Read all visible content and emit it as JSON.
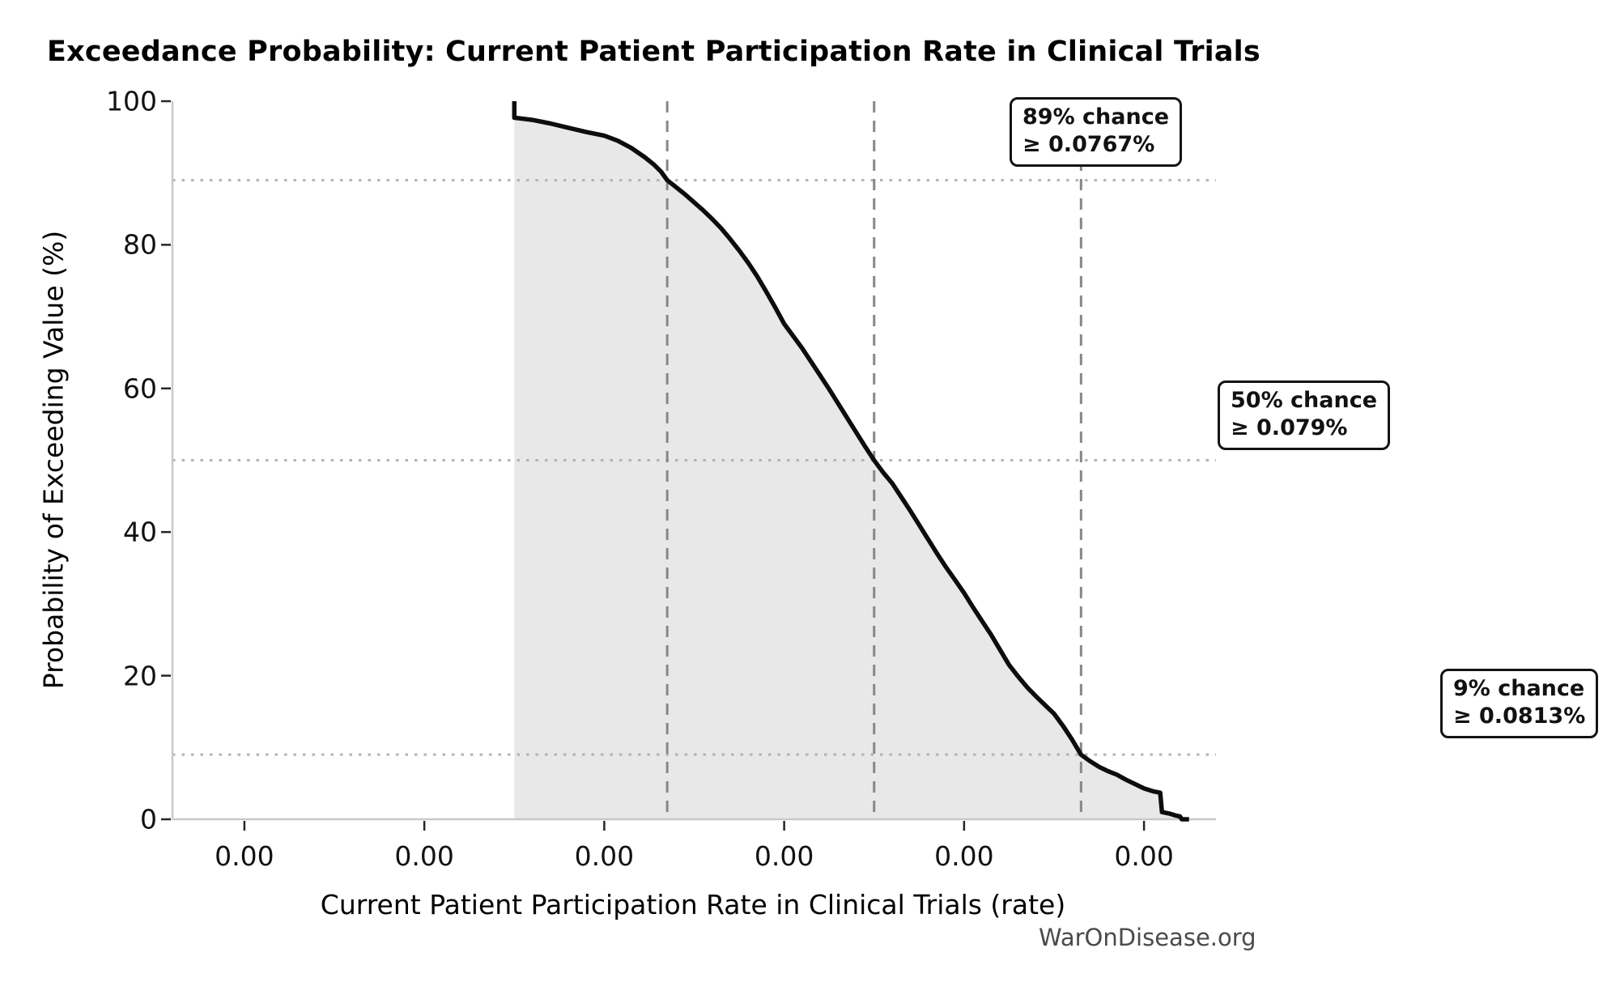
{
  "chart_data": {
    "type": "line",
    "title": "Exceedance Probability: Current Patient Participation Rate in Clinical Trials",
    "xlabel": "Current Patient Participation Rate in Clinical Trials (rate)",
    "ylabel": "Probability of Exceeding Value (%)",
    "watermark": "WarOnDisease.org",
    "xlim": [
      0.0712,
      0.0828
    ],
    "ylim": [
      0,
      100
    ],
    "grid": "off",
    "legend": "none",
    "x_ticks": [
      {
        "value": 0.072,
        "label": "0.00"
      },
      {
        "value": 0.074,
        "label": "0.00"
      },
      {
        "value": 0.076,
        "label": "0.00"
      },
      {
        "value": 0.078,
        "label": "0.00"
      },
      {
        "value": 0.08,
        "label": "0.00"
      },
      {
        "value": 0.082,
        "label": "0.00"
      }
    ],
    "y_ticks": [
      {
        "value": 0,
        "label": "0"
      },
      {
        "value": 20,
        "label": "20"
      },
      {
        "value": 40,
        "label": "40"
      },
      {
        "value": 60,
        "label": "60"
      },
      {
        "value": 80,
        "label": "80"
      },
      {
        "value": 100,
        "label": "100"
      }
    ],
    "annotations": [
      {
        "line1": "89% chance",
        "line2": "≥ 0.0767%",
        "probability_pct": 89,
        "rate": 0.0767
      },
      {
        "line1": "50% chance",
        "line2": "≥ 0.079%",
        "probability_pct": 50,
        "rate": 0.079
      },
      {
        "line1": "9% chance",
        "line2": "≥ 0.0813%",
        "probability_pct": 9,
        "rate": 0.0813
      }
    ],
    "series": [
      {
        "name": "exceedance-curve",
        "points": [
          [
            0.075,
            100.0
          ],
          [
            0.075,
            97.7
          ],
          [
            0.0752,
            97.4
          ],
          [
            0.0754,
            96.9
          ],
          [
            0.0756,
            96.3
          ],
          [
            0.0758,
            95.7
          ],
          [
            0.076,
            95.2
          ],
          [
            0.07615,
            94.5
          ],
          [
            0.0763,
            93.5
          ],
          [
            0.07645,
            92.2
          ],
          [
            0.07655,
            91.2
          ],
          [
            0.07663,
            90.2
          ],
          [
            0.0767,
            89.0
          ],
          [
            0.0768,
            88.0
          ],
          [
            0.0769,
            87.0
          ],
          [
            0.077,
            85.9
          ],
          [
            0.0771,
            84.8
          ],
          [
            0.0772,
            83.6
          ],
          [
            0.0773,
            82.3
          ],
          [
            0.0774,
            80.8
          ],
          [
            0.0775,
            79.2
          ],
          [
            0.0776,
            77.5
          ],
          [
            0.0777,
            75.6
          ],
          [
            0.0778,
            73.5
          ],
          [
            0.0779,
            71.3
          ],
          [
            0.078,
            69.0
          ],
          [
            0.0781,
            67.3
          ],
          [
            0.0782,
            65.6
          ],
          [
            0.0783,
            63.7
          ],
          [
            0.0784,
            61.8
          ],
          [
            0.0785,
            59.9
          ],
          [
            0.0786,
            57.9
          ],
          [
            0.0787,
            55.9
          ],
          [
            0.0788,
            53.9
          ],
          [
            0.0789,
            51.9
          ],
          [
            0.079,
            50.0
          ],
          [
            0.0791,
            48.3
          ],
          [
            0.0792,
            46.8
          ],
          [
            0.0793,
            44.9
          ],
          [
            0.0794,
            43.0
          ],
          [
            0.0795,
            41.0
          ],
          [
            0.0796,
            39.0
          ],
          [
            0.0797,
            37.0
          ],
          [
            0.0798,
            35.1
          ],
          [
            0.0799,
            33.3
          ],
          [
            0.08,
            31.5
          ],
          [
            0.0801,
            29.5
          ],
          [
            0.0802,
            27.6
          ],
          [
            0.0803,
            25.7
          ],
          [
            0.0804,
            23.6
          ],
          [
            0.0805,
            21.5
          ],
          [
            0.0806,
            19.9
          ],
          [
            0.0807,
            18.4
          ],
          [
            0.0808,
            17.1
          ],
          [
            0.0809,
            15.9
          ],
          [
            0.081,
            14.7
          ],
          [
            0.0811,
            13.0
          ],
          [
            0.0812,
            11.1
          ],
          [
            0.0813,
            9.0
          ],
          [
            0.0814,
            8.1
          ],
          [
            0.0815,
            7.3
          ],
          [
            0.0816,
            6.7
          ],
          [
            0.0817,
            6.2
          ],
          [
            0.0818,
            5.5
          ],
          [
            0.0819,
            4.9
          ],
          [
            0.082,
            4.3
          ],
          [
            0.0821,
            3.9
          ],
          [
            0.08218,
            3.7
          ],
          [
            0.0822,
            1.0
          ],
          [
            0.08228,
            0.8
          ],
          [
            0.08236,
            0.5
          ],
          [
            0.0824,
            0.4
          ],
          [
            0.08242,
            0.0
          ],
          [
            0.0825,
            0.0
          ]
        ]
      }
    ],
    "colors": {
      "curve": "#0d0d0d",
      "fill": "#e8e8e8",
      "dashed_guide": "#878787",
      "dotted_guide": "#b3b3b3",
      "spine": "#c9c9c9",
      "tick_mark": "#262626",
      "annotation_border": "#141414",
      "watermark_text": "#4a4a4a"
    }
  }
}
